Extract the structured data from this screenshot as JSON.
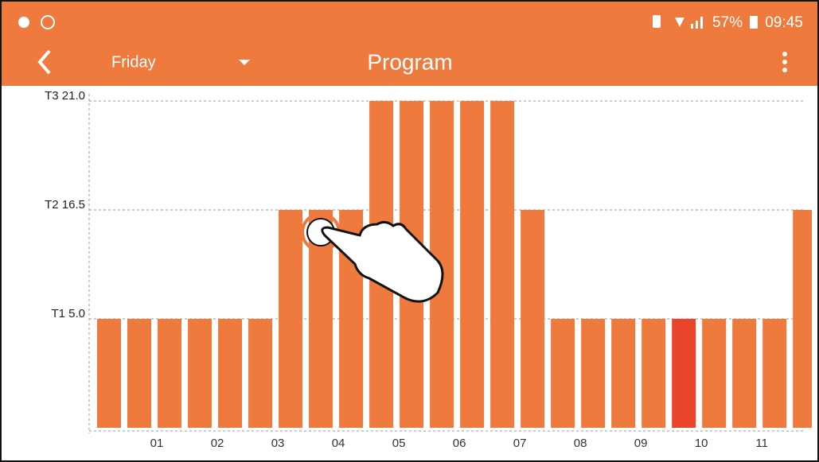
{
  "status_bar": {
    "battery": "57%",
    "time": "09:45"
  },
  "toolbar": {
    "day": "Friday",
    "title": "Program"
  },
  "chart_data": {
    "type": "bar",
    "x": [
      0,
      0.5,
      1,
      1.5,
      2,
      2.5,
      3,
      3.5,
      4,
      4.5,
      5,
      5.5,
      6,
      6.5,
      7,
      7.5,
      8,
      8.5,
      9,
      9.5,
      10,
      10.5,
      11,
      11.5
    ],
    "values": [
      1,
      1,
      1,
      1,
      1,
      1,
      2,
      2,
      2,
      3,
      3,
      3,
      3,
      3,
      2,
      1,
      1,
      1,
      1,
      1,
      1,
      1,
      1,
      2
    ],
    "colors": [
      "#ee7b3d",
      "#ee7b3d",
      "#ee7b3d",
      "#ee7b3d",
      "#ee7b3d",
      "#ee7b3d",
      "#ee7b3d",
      "#ee7b3d",
      "#ee7b3d",
      "#ee7b3d",
      "#ee7b3d",
      "#ee7b3d",
      "#ee7b3d",
      "#ee7b3d",
      "#ee7b3d",
      "#ee7b3d",
      "#ee7b3d",
      "#ee7b3d",
      "#ee7b3d",
      "#e8452b",
      "#ee7b3d",
      "#ee7b3d",
      "#ee7b3d",
      "#ee7b3d"
    ],
    "xlim": [
      0,
      11.8
    ],
    "xticks": [
      {
        "value": 1,
        "label": "01"
      },
      {
        "value": 2,
        "label": "02"
      },
      {
        "value": 3,
        "label": "03"
      },
      {
        "value": 4,
        "label": "04"
      },
      {
        "value": 5,
        "label": "05"
      },
      {
        "value": 6,
        "label": "06"
      },
      {
        "value": 7,
        "label": "07"
      },
      {
        "value": 8,
        "label": "08"
      },
      {
        "value": 9,
        "label": "09"
      },
      {
        "value": 10,
        "label": "10"
      },
      {
        "value": 11,
        "label": "11"
      }
    ],
    "ylim": [
      0,
      3
    ],
    "yticks": [
      {
        "value": 1,
        "label": "T1 5.0"
      },
      {
        "value": 2,
        "label": "T2 16.5"
      },
      {
        "value": 3,
        "label": "T3 21.0"
      }
    ],
    "grid": true
  }
}
